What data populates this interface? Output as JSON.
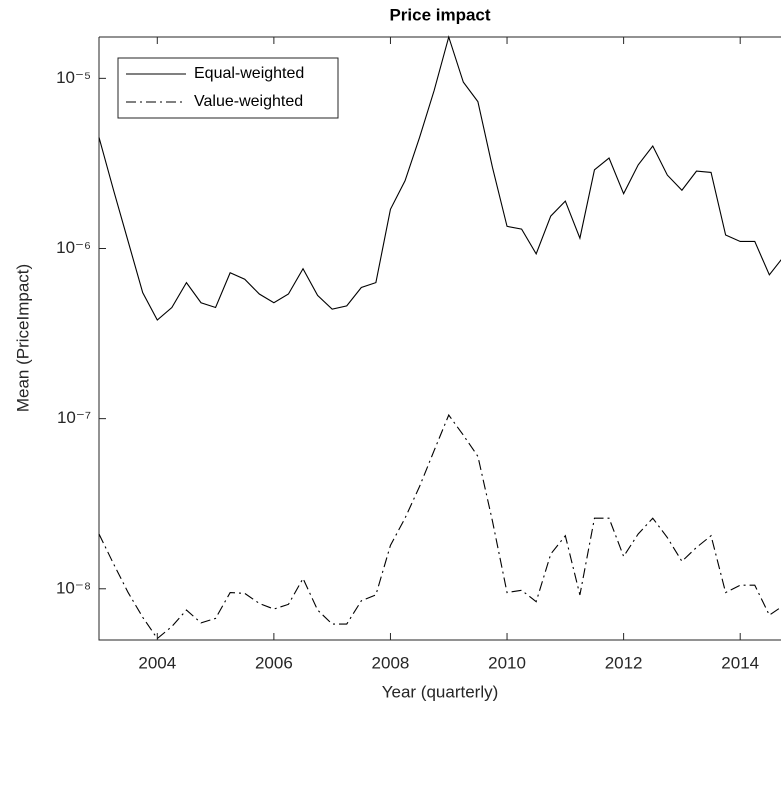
{
  "chart_data": {
    "type": "line",
    "title": "Price impact",
    "x_label": "Year (quarterly)",
    "y_label": "Mean (PriceImpact)",
    "log_y": true,
    "legend": "upper left",
    "x": [
      2003,
      2003.25,
      2003.5,
      2003.75,
      2004,
      2004.25,
      2004.5,
      2004.75,
      2005,
      2005.25,
      2005.5,
      2005.75,
      2006,
      2006.25,
      2006.5,
      2006.75,
      2007,
      2007.25,
      2007.5,
      2007.75,
      2008,
      2008.25,
      2008.5,
      2008.75,
      2009,
      2009.25,
      2009.5,
      2009.75,
      2010,
      2010.25,
      2010.5,
      2010.75,
      2011,
      2011.25,
      2011.5,
      2011.75,
      2012,
      2012.25,
      2012.5,
      2012.75,
      2013,
      2013.25,
      2013.5,
      2013.75,
      2014,
      2014.25,
      2014.5,
      2014.75
    ],
    "series": [
      {
        "name": "Equal-weighted",
        "color": "#000000",
        "dash": "solid",
        "values": [
          4.5e-06,
          2.2e-06,
          1.1e-06,
          5.5e-07,
          3.8e-07,
          4.5e-07,
          6.3e-07,
          4.8e-07,
          4.5e-07,
          7.2e-07,
          6.6e-07,
          5.4e-07,
          4.8e-07,
          5.4e-07,
          7.6e-07,
          5.3e-07,
          4.4e-07,
          4.6e-07,
          5.9e-07,
          6.3e-07,
          1.7e-06,
          2.5e-06,
          4.5e-06,
          8.5e-06,
          1.75e-05,
          9.5e-06,
          7.3e-06,
          3e-06,
          1.35e-06,
          1.3e-06,
          9.3e-07,
          1.55e-06,
          1.9e-06,
          1.15e-06,
          2.9e-06,
          3.4e-06,
          2.1e-06,
          3.1e-06,
          4e-06,
          2.7e-06,
          2.2e-06,
          2.85e-06,
          2.8e-06,
          1.2e-06,
          1.1e-06,
          1.1e-06,
          7e-07,
          9e-07
        ]
      },
      {
        "name": "Value-weighted",
        "color": "#000000",
        "dash": "dashdot",
        "values": [
          2.1e-08,
          1.4e-08,
          9.5e-09,
          6.8e-09,
          5.1e-09,
          6e-09,
          7.5e-09,
          6.3e-09,
          6.7e-09,
          9.5e-09,
          9.4e-09,
          8.2e-09,
          7.6e-09,
          8.1e-09,
          1.15e-08,
          7.5e-09,
          6.2e-09,
          6.2e-09,
          8.5e-09,
          9.2e-09,
          1.8e-08,
          2.6e-08,
          4e-08,
          6.5e-08,
          1.05e-07,
          8e-08,
          6e-08,
          2.5e-08,
          9.5e-09,
          9.8e-09,
          8.4e-09,
          1.6e-08,
          2.05e-08,
          9.2e-09,
          2.6e-08,
          2.6e-08,
          1.55e-08,
          2.1e-08,
          2.6e-08,
          2e-08,
          1.45e-08,
          1.75e-08,
          2.05e-08,
          9.5e-09,
          1.05e-08,
          1.05e-08,
          7e-09,
          8e-09
        ]
      }
    ],
    "xlim": [
      2003,
      2014.7
    ],
    "xticks": [
      2004,
      2006,
      2008,
      2010,
      2012,
      2014
    ],
    "ylim": [
      5e-09,
      1.75e-05
    ],
    "yticks": [
      {
        "value": 1e-08,
        "label": "10⁻⁸"
      },
      {
        "value": 1e-07,
        "label": "10⁻⁷"
      },
      {
        "value": 1e-06,
        "label": "10⁻⁶"
      },
      {
        "value": 1e-05,
        "label": "10⁻⁵"
      }
    ]
  }
}
